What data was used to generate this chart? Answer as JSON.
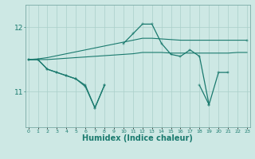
{
  "x": [
    0,
    1,
    2,
    3,
    4,
    5,
    6,
    7,
    8,
    9,
    10,
    11,
    12,
    13,
    14,
    15,
    16,
    17,
    18,
    19,
    20,
    21,
    22,
    23
  ],
  "line_upper": [
    11.5,
    11.5,
    11.5,
    11.5,
    11.5,
    11.5,
    11.5,
    11.5,
    null,
    null,
    11.75,
    11.9,
    12.05,
    12.05,
    11.75,
    11.6,
    11.7,
    11.7,
    null,
    null,
    null,
    11.65,
    null,
    11.8
  ],
  "line_smooth_top": [
    11.5,
    11.51,
    11.53,
    11.56,
    11.59,
    11.62,
    11.65,
    11.68,
    11.71,
    11.74,
    11.77,
    11.8,
    11.83,
    11.83,
    11.82,
    11.81,
    11.8,
    11.8,
    11.8,
    11.8,
    11.8,
    11.8,
    11.8,
    11.8
  ],
  "line_smooth_mid": [
    11.5,
    11.5,
    11.5,
    11.51,
    11.52,
    11.53,
    11.54,
    11.55,
    11.56,
    11.57,
    11.58,
    11.59,
    11.61,
    11.61,
    11.61,
    11.6,
    11.6,
    11.6,
    11.6,
    11.6,
    11.6,
    11.6,
    11.61,
    11.61
  ],
  "line_lower": [
    11.5,
    11.5,
    11.35,
    11.3,
    11.25,
    11.2,
    11.1,
    10.75,
    11.1,
    null,
    null,
    null,
    null,
    null,
    null,
    null,
    null,
    null,
    11.1,
    10.8,
    null,
    null,
    null,
    null
  ],
  "line_main": [
    11.5,
    11.5,
    11.35,
    11.3,
    11.25,
    11.2,
    11.08,
    10.75,
    11.1,
    null,
    11.75,
    11.9,
    12.05,
    12.05,
    11.75,
    11.58,
    11.55,
    11.65,
    11.55,
    10.8,
    11.3,
    11.3,
    null,
    11.8
  ],
  "line_color": "#1a7a6e",
  "bg_color": "#cde8e4",
  "grid_color": "#aacfca",
  "xlabel": "Humidex (Indice chaleur)",
  "xlabel_fontsize": 7,
  "yticks": [
    11,
    12
  ],
  "ylim": [
    10.45,
    12.35
  ],
  "xlim": [
    -0.3,
    23.3
  ]
}
